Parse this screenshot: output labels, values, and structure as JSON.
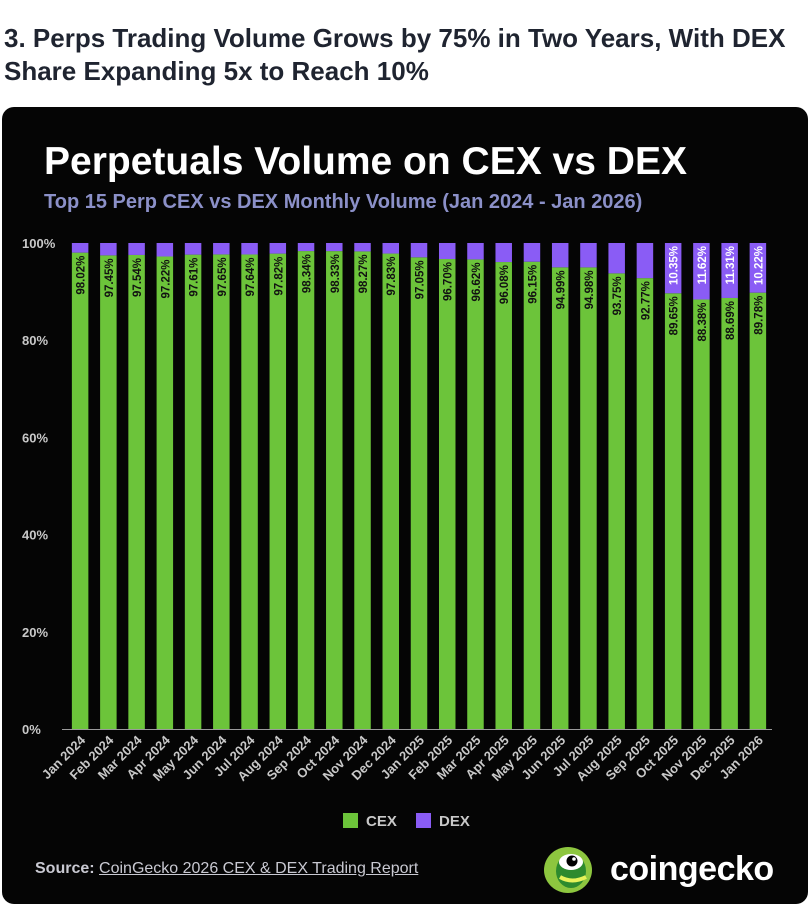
{
  "page": {
    "headline": "3. Perps Trading Volume Grows by 75% in Two Years, With DEX Share Expanding 5x to Reach 10%",
    "source_label": "Source:",
    "source_text": "CoinGecko 2026 CEX & DEX Trading Report",
    "brand_name": "coingecko"
  },
  "colors": {
    "cex": "#6cc43a",
    "dex": "#8a5cf5",
    "background": "#050505",
    "subtitle": "#8b90c8"
  },
  "chart_data": {
    "type": "bar",
    "stacked": true,
    "title": "Perpetuals Volume on CEX vs DEX",
    "subtitle": "Top 15 Perp CEX vs DEX Monthly Volume (Jan 2024 - Jan 2026)",
    "ylim": [
      0,
      100
    ],
    "yticks": [
      "0%",
      "20%",
      "40%",
      "60%",
      "80%",
      "100%"
    ],
    "categories": [
      "Jan 2024",
      "Feb 2024",
      "Mar 2024",
      "Apr 2024",
      "May 2024",
      "Jun 2024",
      "Jul 2024",
      "Aug 2024",
      "Sep 2024",
      "Oct 2024",
      "Nov 2024",
      "Dec 2024",
      "Jan 2025",
      "Feb 2025",
      "Mar 2025",
      "Apr 2025",
      "May 2025",
      "Jun 2025",
      "Jul 2025",
      "Aug 2025",
      "Sep 2025",
      "Oct 2025",
      "Nov 2025",
      "Dec 2025",
      "Jan 2026"
    ],
    "series": [
      {
        "name": "CEX",
        "values": [
          98.02,
          97.45,
          97.54,
          97.22,
          97.61,
          97.65,
          97.64,
          97.82,
          98.34,
          98.33,
          98.27,
          97.83,
          97.05,
          96.7,
          96.62,
          96.08,
          96.15,
          94.99,
          94.98,
          93.75,
          92.77,
          89.65,
          88.38,
          88.69,
          89.78
        ],
        "labels": [
          "98.02%",
          "97.45%",
          "97.54%",
          "97.22%",
          "97.61%",
          "97.65%",
          "97.64%",
          "97.82%",
          "98.34%",
          "98.33%",
          "98.27%",
          "97.83%",
          "97.05%",
          "96.70%",
          "96.62%",
          "96.08%",
          "96.15%",
          "94.99%",
          "94.98%",
          "93.75%",
          "92.77%",
          "89.65%",
          "88.38%",
          "88.69%",
          "89.78%"
        ]
      },
      {
        "name": "DEX",
        "values": [
          1.98,
          2.55,
          2.46,
          2.78,
          2.39,
          2.35,
          2.36,
          2.18,
          1.66,
          1.67,
          1.73,
          2.17,
          2.95,
          3.3,
          3.38,
          3.92,
          3.85,
          5.01,
          5.02,
          6.25,
          7.23,
          10.35,
          11.62,
          11.31,
          10.22
        ],
        "labels": [
          "",
          "",
          "",
          "",
          "",
          "",
          "",
          "",
          "",
          "",
          "",
          "",
          "",
          "",
          "",
          "",
          "",
          "",
          "",
          "",
          "",
          "10.35%",
          "11.62%",
          "11.31%",
          "10.22%"
        ]
      }
    ],
    "legend": [
      "CEX",
      "DEX"
    ],
    "legend_position": "bottom",
    "grid": false
  }
}
